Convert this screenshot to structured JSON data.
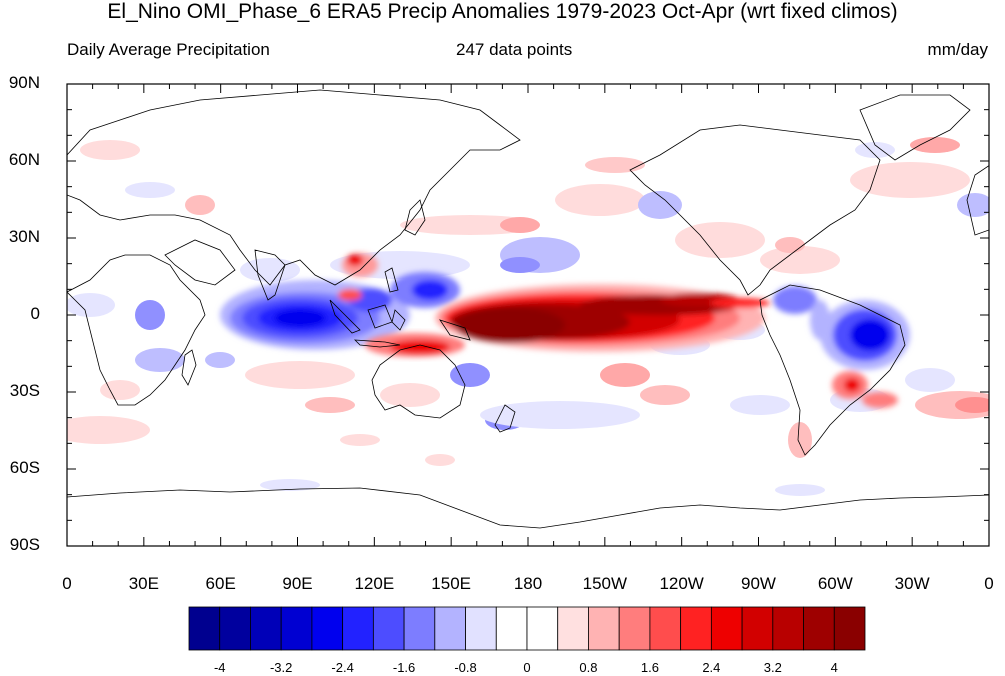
{
  "title": "El_Nino OMI_Phase_6 ERA5 Precip Anomalies 1979-2023 Oct-Apr (wrt fixed climos)",
  "subtitle_left": "Daily Average Precipitation",
  "subtitle_center": "247 data points",
  "subtitle_right": "mm/day",
  "map": {
    "projection": "cylindrical-equidistant",
    "lat_labels": [
      "90N",
      "60N",
      "30N",
      "0",
      "30S",
      "60S",
      "90S"
    ],
    "lon_labels": [
      "0",
      "30E",
      "60E",
      "90E",
      "120E",
      "150E",
      "180",
      "150W",
      "120W",
      "90W",
      "60W",
      "30W",
      "0"
    ],
    "features": [
      "coastlines",
      "precipitation anomaly contours (filled)"
    ]
  },
  "colorbar": {
    "labels": [
      "-4",
      "-3.2",
      "-2.4",
      "-1.6",
      "-0.8",
      "0",
      "0.8",
      "1.6",
      "2.4",
      "3.2",
      "4"
    ],
    "colors": [
      "#00008f",
      "#00009e",
      "#0000b8",
      "#0000d2",
      "#0000ee",
      "#2222ff",
      "#4d4dff",
      "#7d7dff",
      "#b3b3ff",
      "#e1e1ff",
      "#ffffff",
      "#ffffff",
      "#ffe0e0",
      "#ffb3b3",
      "#ff7d7d",
      "#ff4d4d",
      "#ff2222",
      "#ee0000",
      "#d20000",
      "#b80000",
      "#9e0000",
      "#8a0000"
    ]
  }
}
